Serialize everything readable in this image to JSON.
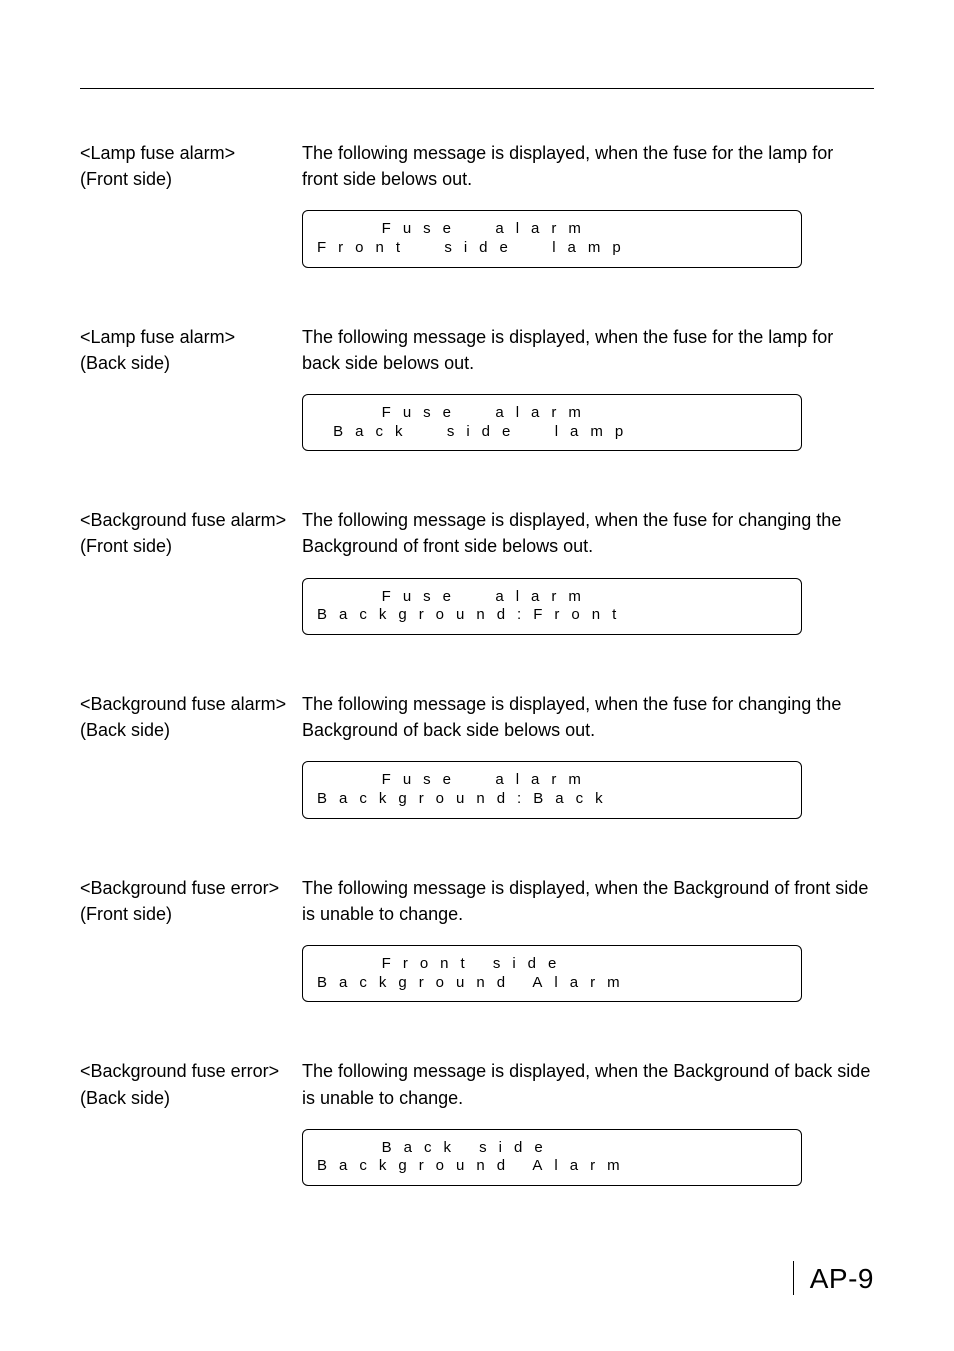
{
  "page": {
    "number": "AP-9"
  },
  "entries": [
    {
      "term_l1": "<Lamp fuse alarm>",
      "term_l2": "(Front side)",
      "desc": "The following message is displayed, when the fuse for the lamp for front side belows out.",
      "lcd_l1": "    Fuse  alarm",
      "lcd_l2": "Front  side  lamp"
    },
    {
      "term_l1": "<Lamp fuse alarm>",
      "term_l2": "(Back side)",
      "desc": "The following message is displayed, when the fuse for the lamp for back side belows out.",
      "lcd_l1": "    Fuse  alarm",
      "lcd_l2": " Back  side  lamp"
    },
    {
      "term_l1": "<Background fuse alarm>",
      "term_l2": "(Front side)",
      "desc": "The following message is displayed, when the fuse for changing the Background of front side belows out.",
      "lcd_l1": "    Fuse  alarm",
      "lcd_l2": "Background:Front"
    },
    {
      "term_l1": "<Background fuse alarm>",
      "term_l2": "(Back side)",
      "desc": "The following message is displayed, when the fuse for changing the Background of back side belows out.",
      "lcd_l1": "    Fuse  alarm",
      "lcd_l2": "Background:Back"
    },
    {
      "term_l1": "<Background fuse error>",
      "term_l2": "(Front side)",
      "desc": "The following message is displayed, when the Background of front side is unable to change.",
      "lcd_l1": "    Front side",
      "lcd_l2": "Background Alarm"
    },
    {
      "term_l1": "<Background fuse error>",
      "term_l2": "(Back side)",
      "desc": "The following message is displayed, when the Background of back side is unable to change.",
      "lcd_l1": "    Back side",
      "lcd_l2": "Background Alarm"
    }
  ]
}
